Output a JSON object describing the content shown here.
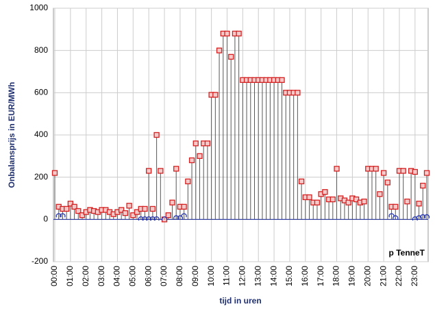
{
  "chart_data": {
    "type": "stem",
    "x_label": "tijd in uren",
    "y_label": "Onbalansprijs in EUR/MWh",
    "annotation": "p TenneT",
    "categories": [
      "00:00",
      null,
      null,
      null,
      "01:00",
      null,
      null,
      null,
      "02:00",
      null,
      null,
      null,
      "03:00",
      null,
      null,
      null,
      "04:00",
      null,
      null,
      null,
      "05:00",
      null,
      null,
      null,
      "06:00",
      null,
      null,
      null,
      "07:00",
      null,
      null,
      null,
      "08:00",
      null,
      null,
      null,
      "09:00",
      null,
      null,
      null,
      "10:00",
      null,
      null,
      null,
      "11:00",
      null,
      null,
      null,
      "12:00",
      null,
      null,
      null,
      "13:00",
      null,
      null,
      null,
      "14:00",
      null,
      null,
      null,
      "15:00",
      null,
      null,
      null,
      "16:00",
      null,
      null,
      null,
      "17:00",
      null,
      null,
      null,
      "18:00",
      null,
      null,
      null,
      "19:00",
      null,
      null,
      null,
      "20:00",
      null,
      null,
      null,
      "21:00",
      null,
      null,
      null,
      "22:00",
      null,
      null,
      null,
      "23:00",
      null,
      null,
      null
    ],
    "series": [
      {
        "color": "#d42020",
        "marker": "square",
        "values": [
          220,
          60,
          50,
          50,
          75,
          60,
          40,
          20,
          35,
          45,
          40,
          35,
          45,
          45,
          35,
          25,
          35,
          45,
          30,
          65,
          20,
          35,
          50,
          50,
          230,
          50,
          400,
          230,
          0,
          20,
          80,
          240,
          60,
          60,
          180,
          280,
          360,
          300,
          360,
          360,
          590,
          590,
          800,
          880,
          880,
          770,
          880,
          880,
          660,
          660,
          660,
          660,
          660,
          660,
          660,
          660,
          660,
          660,
          660,
          600,
          600,
          600,
          600,
          180,
          105,
          105,
          80,
          80,
          120,
          130,
          95,
          95,
          240,
          100,
          90,
          80,
          100,
          95,
          80,
          85,
          240,
          240,
          240,
          120,
          220,
          175,
          60,
          60,
          230,
          230,
          85,
          230,
          225,
          75,
          160,
          220
        ]
      },
      {
        "color": "#2030b0",
        "marker": "hook",
        "values": [
          null,
          20,
          20,
          null,
          null,
          null,
          null,
          null,
          null,
          null,
          null,
          null,
          null,
          null,
          null,
          null,
          null,
          null,
          null,
          null,
          null,
          null,
          5,
          5,
          5,
          5,
          5,
          null,
          5,
          null,
          null,
          10,
          10,
          20,
          null,
          null,
          null,
          null,
          null,
          null,
          null,
          null,
          null,
          null,
          null,
          null,
          null,
          null,
          null,
          null,
          null,
          null,
          null,
          null,
          null,
          null,
          null,
          null,
          null,
          null,
          null,
          null,
          null,
          null,
          null,
          null,
          null,
          null,
          null,
          null,
          null,
          null,
          null,
          null,
          null,
          null,
          null,
          null,
          null,
          null,
          null,
          null,
          null,
          null,
          null,
          null,
          20,
          10,
          null,
          null,
          null,
          null,
          5,
          10,
          15,
          15
        ]
      }
    ],
    "ylim": [
      -200,
      1000
    ],
    "yticks": [
      -200,
      0,
      200,
      400,
      600,
      800,
      1000
    ],
    "grid": true
  }
}
